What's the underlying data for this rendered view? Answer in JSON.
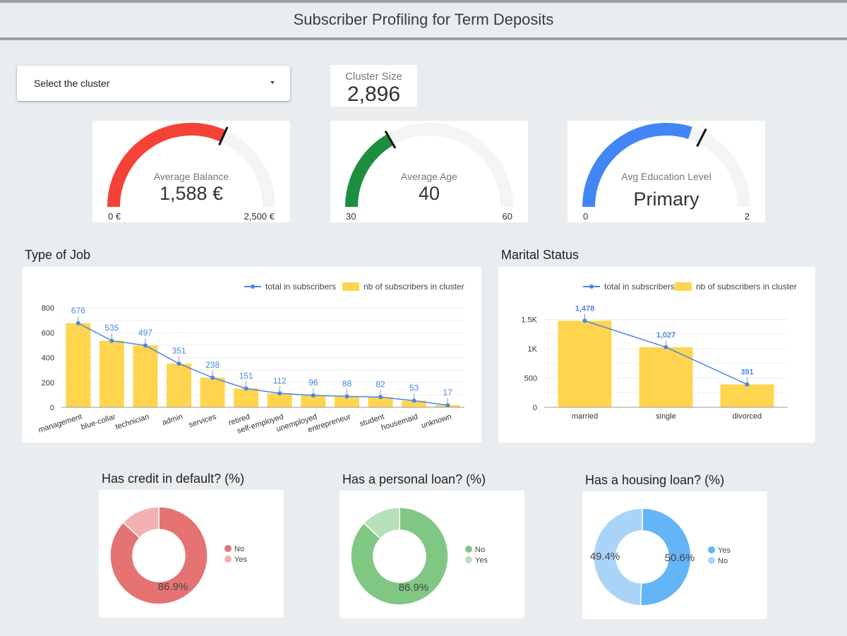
{
  "header": {
    "title": "Subscriber Profiling for Term Deposits"
  },
  "filter": {
    "label": "Select the cluster"
  },
  "cluster_size": {
    "label": "Cluster Size",
    "value": "2,896"
  },
  "gauges": [
    {
      "label": "Average Balance",
      "value_text": "1,588 €",
      "min_label": "0 €",
      "max_label": "2,500 €",
      "min": 0,
      "max": 2500,
      "value": 1588,
      "target": 1588,
      "color": "#f44336"
    },
    {
      "label": "Average Age",
      "value_text": "40",
      "min_label": "30",
      "max_label": "60",
      "min": 30,
      "max": 60,
      "value": 40,
      "target": 40,
      "color": "#1e8e3e"
    },
    {
      "label": "Avg Education Level",
      "value_text": "Primary",
      "min_label": "0",
      "max_label": "2",
      "min": 0,
      "max": 2,
      "value": 1.2,
      "target": 1.3,
      "color": "#4285f4"
    }
  ],
  "sections": {
    "job": "Type of Job",
    "marital": "Marital Status",
    "default": "Has credit in default? (%)",
    "personal": "Has a personal loan? (%)",
    "housing": "Has a housing loan? (%)"
  },
  "chart_data": [
    {
      "type": "bar",
      "title": "Type of Job",
      "categories": [
        "management",
        "blue-collar",
        "technician",
        "admin",
        "services",
        "retired",
        "self-employed",
        "unemployed",
        "entrepreneur",
        "student",
        "housemaid",
        "unknown"
      ],
      "series": [
        {
          "name": "total in subscribers",
          "kind": "line",
          "values": [
            676,
            535,
            497,
            351,
            238,
            151,
            112,
            96,
            88,
            82,
            53,
            17
          ],
          "color": "#4a86e8"
        },
        {
          "name": "nb of subscribers in cluster",
          "kind": "bar",
          "values": [
            676,
            535,
            497,
            351,
            238,
            151,
            112,
            96,
            88,
            82,
            53,
            17
          ],
          "color": "#ffd54f"
        }
      ],
      "y_ticks": [
        "0",
        "200",
        "400",
        "600",
        "800"
      ],
      "point_labels": [
        "676",
        "535",
        "497",
        "351",
        "238",
        "151",
        "112",
        "96",
        "88",
        "82",
        "53",
        "17"
      ],
      "ylim": [
        0,
        800
      ],
      "legend": "top-right"
    },
    {
      "type": "bar",
      "title": "Marital Status",
      "categories": [
        "married",
        "single",
        "divorced"
      ],
      "series": [
        {
          "name": "total in subscribers",
          "kind": "line",
          "values": [
            1478,
            1027,
            391
          ],
          "color": "#4a86e8"
        },
        {
          "name": "nb of subscribers in cluster",
          "kind": "bar",
          "values": [
            1478,
            1027,
            391
          ],
          "color": "#ffd54f"
        }
      ],
      "y_ticks": [
        "0",
        "500",
        "1K",
        "1.5K"
      ],
      "point_labels": [
        "1,478",
        "1,027",
        "391"
      ],
      "ylim": [
        0,
        1700
      ],
      "legend": "top-right"
    },
    {
      "type": "pie",
      "title": "Has credit in default? (%)",
      "slices": [
        {
          "label": "No",
          "value": 86.9,
          "color": "#e57373"
        },
        {
          "label": "Yes",
          "value": 13.1,
          "color": "#f2b1b1"
        }
      ],
      "shown_labels": [
        "86.9%"
      ],
      "legend": "right"
    },
    {
      "type": "pie",
      "title": "Has a personal loan? (%)",
      "slices": [
        {
          "label": "No",
          "value": 86.9,
          "color": "#81c784"
        },
        {
          "label": "Yes",
          "value": 13.1,
          "color": "#b7dfb9"
        }
      ],
      "shown_labels": [
        "86.9%"
      ],
      "legend": "right"
    },
    {
      "type": "pie",
      "title": "Has a housing loan? (%)",
      "slices": [
        {
          "label": "Yes",
          "value": 50.6,
          "color": "#64b5f6"
        },
        {
          "label": "No",
          "value": 49.4,
          "color": "#aad4f7"
        }
      ],
      "shown_labels": [
        "50.6%",
        "49.4%"
      ],
      "legend": "right"
    }
  ]
}
